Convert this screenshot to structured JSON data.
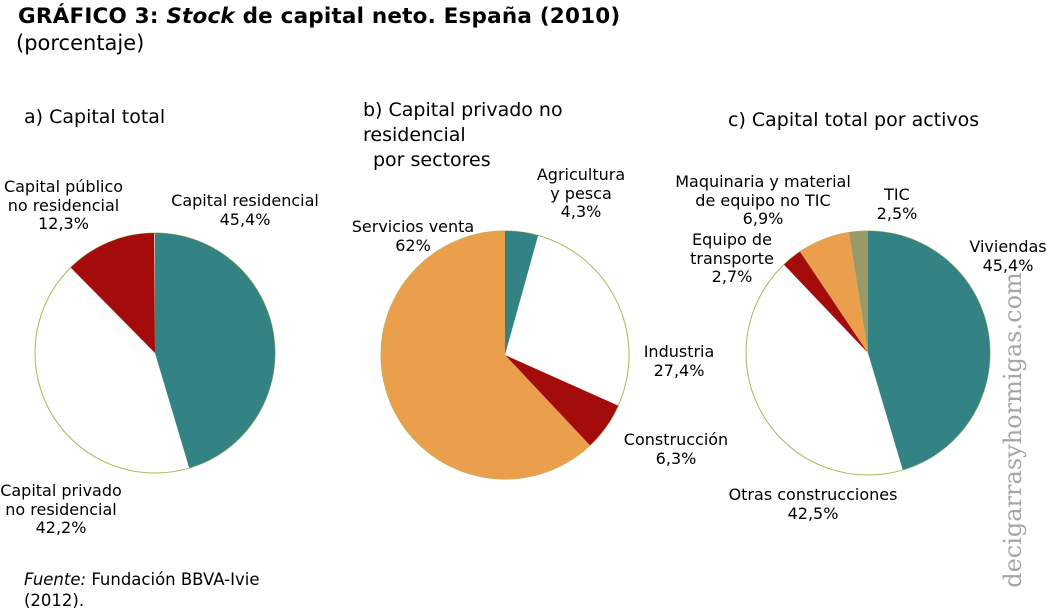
{
  "header": {
    "title_prefix": "GRÁFICO 3: ",
    "title_stock": "Stock",
    "title_suffix": " de capital neto. España (2010)",
    "subtitle": "(porcentaje)"
  },
  "footer": {
    "source_label": "Fuente:",
    "source_text": " Fundación BBVA-Ivie",
    "source_year": "(2012)."
  },
  "watermark": "decigarrasyhormigas.com",
  "colors": {
    "teal": "#338384",
    "dark_red": "#A40B0B",
    "orange": "#EA9F4D",
    "khaki": "#9A9A68",
    "white": "#FFFFFF",
    "outline": "#B3B356"
  },
  "chart_data": [
    {
      "type": "pie",
      "title": "a) Capital total",
      "unit": "%",
      "start_angle_deg": 0,
      "direction": "clockwise",
      "legend": "none",
      "slices": [
        {
          "label": "Capital residencial",
          "label_lines": [
            "Capital residencial"
          ],
          "value": 45.4,
          "display": "45,4%",
          "color": "teal"
        },
        {
          "label": "Capital privado no residencial",
          "label_lines": [
            "Capital privado",
            "no residencial"
          ],
          "value": 42.2,
          "display": "42,2%",
          "color": "white"
        },
        {
          "label": "Capital público no residencial",
          "label_lines": [
            "Capital público",
            "no residencial"
          ],
          "value": 12.3,
          "display": "12,3%",
          "color": "dark_red"
        }
      ]
    },
    {
      "type": "pie",
      "title": "b) Capital privado no residencial por sectores",
      "title_lines": [
        "b) Capital privado no",
        "residencial",
        "por sectores"
      ],
      "unit": "%",
      "start_angle_deg": 0,
      "direction": "clockwise",
      "legend": "none",
      "slices": [
        {
          "label": "Agricultura y pesca",
          "label_lines": [
            "Agricultura",
            "y pesca"
          ],
          "value": 4.3,
          "display": "4,3%",
          "color": "teal"
        },
        {
          "label": "Industria",
          "label_lines": [
            "Industria"
          ],
          "value": 27.4,
          "display": "27,4%",
          "color": "white"
        },
        {
          "label": "Construcción",
          "label_lines": [
            "Construcción"
          ],
          "value": 6.3,
          "display": "6,3%",
          "color": "dark_red"
        },
        {
          "label": "Servicios venta",
          "label_lines": [
            "Servicios venta"
          ],
          "value": 62,
          "display": "62%",
          "color": "orange"
        }
      ]
    },
    {
      "type": "pie",
      "title": "c) Capital total por activos",
      "unit": "%",
      "start_angle_deg": 0,
      "direction": "clockwise",
      "legend": "none",
      "slices": [
        {
          "label": "Viviendas",
          "label_lines": [
            "Viviendas"
          ],
          "value": 45.4,
          "display": "45,4%",
          "color": "teal"
        },
        {
          "label": "Otras construcciones",
          "label_lines": [
            "Otras construcciones"
          ],
          "value": 42.5,
          "display": "42,5%",
          "color": "white"
        },
        {
          "label": "Equipo de transporte",
          "label_lines": [
            "Equipo de",
            "transporte"
          ],
          "value": 2.7,
          "display": "2,7%",
          "color": "dark_red"
        },
        {
          "label": "Maquinaria y material de equipo no TIC",
          "label_lines": [
            "Maquinaria y material",
            "de equipo no TIC"
          ],
          "value": 6.9,
          "display": "6,9%",
          "color": "orange"
        },
        {
          "label": "TIC",
          "label_lines": [
            "TIC"
          ],
          "value": 2.5,
          "display": "2,5%",
          "color": "khaki"
        }
      ]
    }
  ]
}
